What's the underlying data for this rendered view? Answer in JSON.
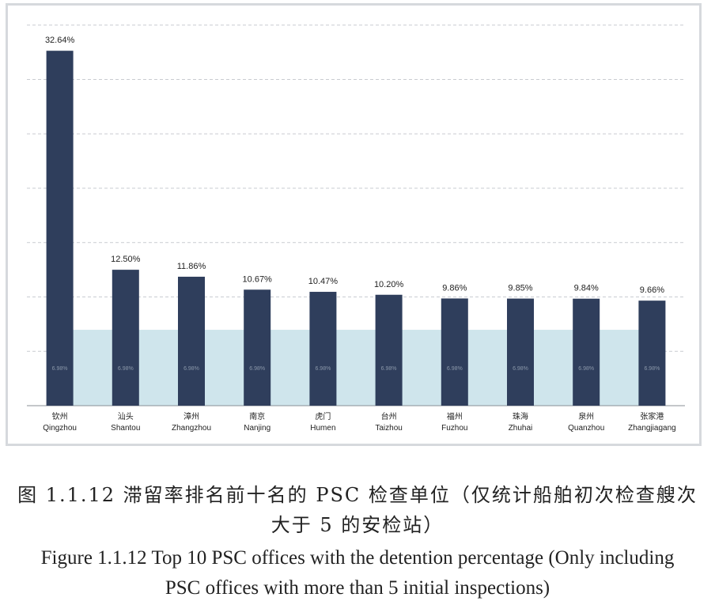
{
  "chart_data": {
    "type": "bar",
    "categories": [
      {
        "cn": "钦州",
        "en": "Qingzhou"
      },
      {
        "cn": "汕头",
        "en": "Shantou"
      },
      {
        "cn": "漳州",
        "en": "Zhangzhou"
      },
      {
        "cn": "南京",
        "en": "Nanjing"
      },
      {
        "cn": "虎门",
        "en": "Humen"
      },
      {
        "cn": "台州",
        "en": "Taizhou"
      },
      {
        "cn": "福州",
        "en": "Fuzhou"
      },
      {
        "cn": "珠海",
        "en": "Zhuhai"
      },
      {
        "cn": "泉州",
        "en": "Quanzhou"
      },
      {
        "cn": "张家港",
        "en": "Zhangjiagang"
      }
    ],
    "values": [
      32.64,
      12.5,
      11.86,
      10.67,
      10.47,
      10.2,
      9.86,
      9.85,
      9.84,
      9.66
    ],
    "value_labels": [
      "32.64%",
      "12.50%",
      "11.86%",
      "10.67%",
      "10.47%",
      "10.20%",
      "9.86%",
      "9.85%",
      "9.84%",
      "9.66%"
    ],
    "average": 6.98,
    "average_label": "6.98%",
    "ylim": [
      0,
      35
    ],
    "grid": true,
    "colors": {
      "bar": "#2f3e5c",
      "average_band": "#cfe5ec",
      "grid": "#c9ccd1",
      "axis": "#8a8f96",
      "label": "#222222",
      "avg_label": "#8a97a9"
    }
  },
  "caption": {
    "cn_line1": "图 1.1.12 滞留率排名前十名的 PSC 检查单位（仅统计船舶初次检查艘次",
    "cn_line2": "大于 5 的安检站）",
    "en_line1": "Figure 1.1.12 Top 10 PSC offices with the detention percentage (Only including",
    "en_line2": "PSC offices with more than 5 initial inspections)"
  }
}
